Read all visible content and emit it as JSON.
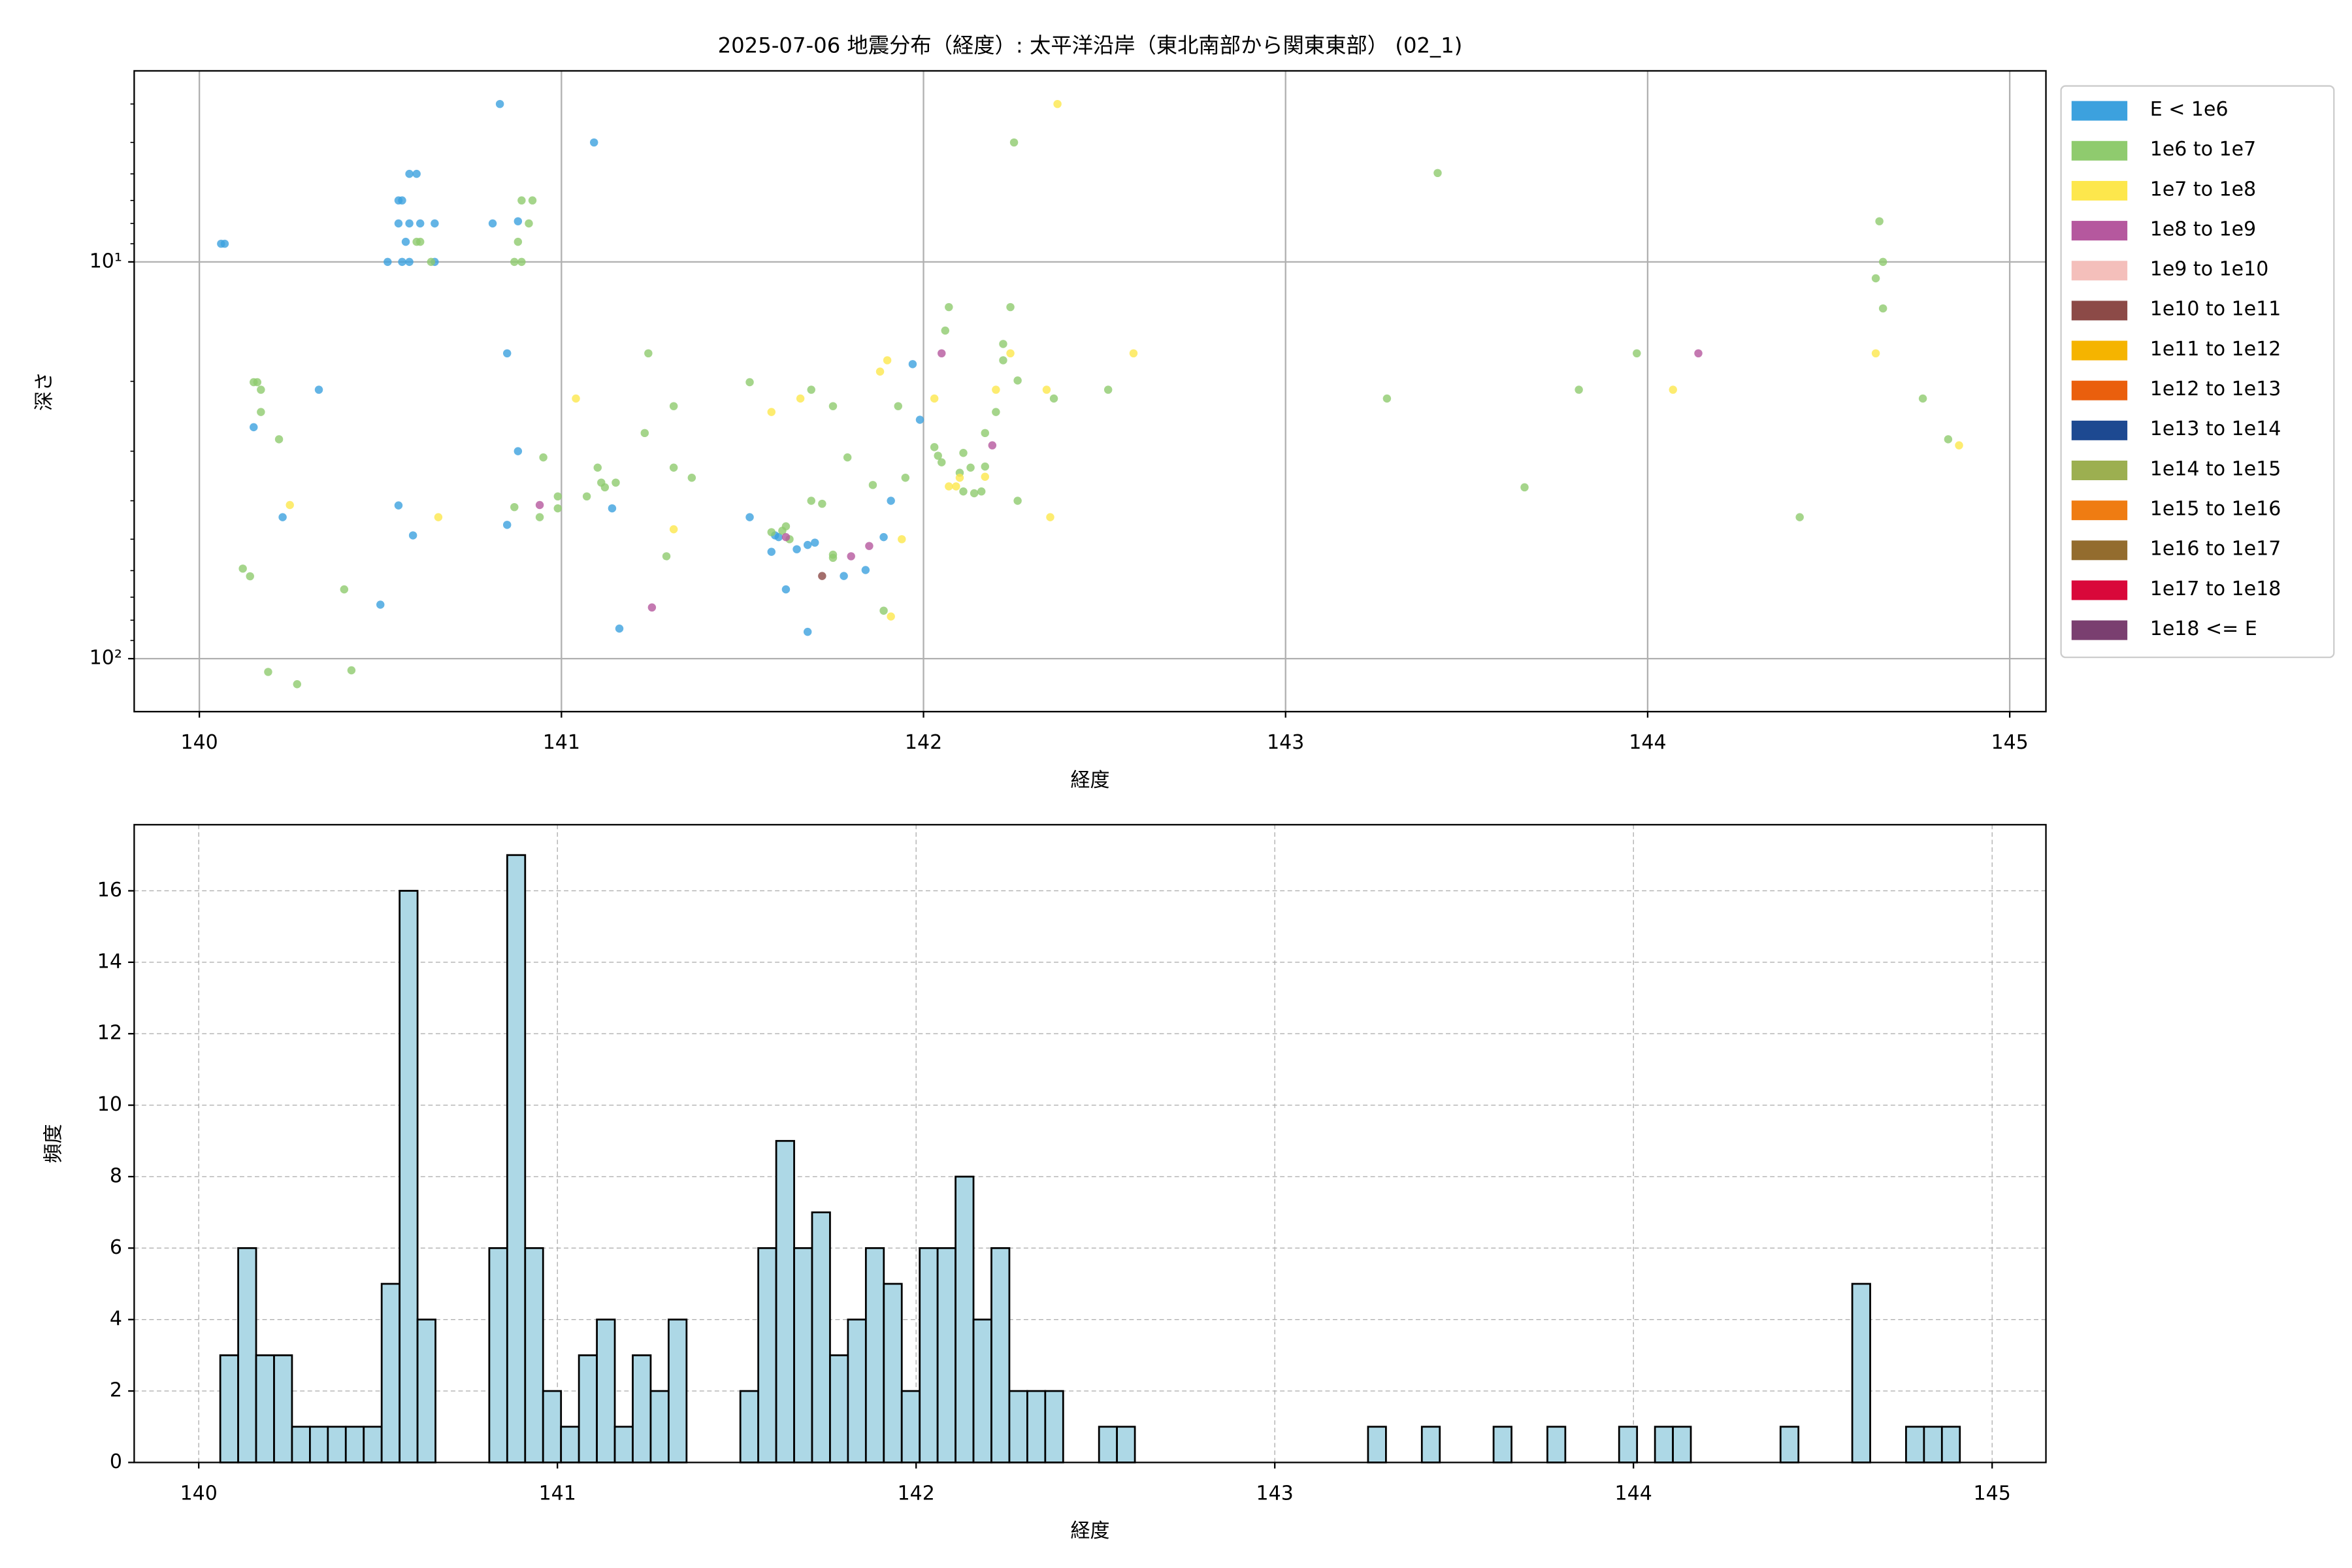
{
  "chart_data": [
    {
      "type": "scatter",
      "title": "2025-07-06 地震分布（経度）: 太平洋沿岸（東北南部から関東東部） (02_1)",
      "xlabel": "経度",
      "ylabel": "深さ",
      "xlim": [
        139.82,
        145.1
      ],
      "ylim": [
        3.3,
        136
      ],
      "yscale": "log",
      "y_inverted": true,
      "xticks": [
        140,
        141,
        142,
        143,
        144,
        145
      ],
      "yticks": [
        {
          "value": 10,
          "label": "10¹"
        },
        {
          "value": 100,
          "label": "10²"
        }
      ],
      "yminorticks": [
        4,
        5,
        6,
        7,
        8,
        9,
        20,
        30,
        40,
        50,
        60,
        70,
        80,
        90
      ],
      "grid": true,
      "legend": "outside upper right",
      "series": [
        {
          "name": "E < 1e6",
          "color": "#3ca1de",
          "x": [
            140.06,
            140.07,
            140.15,
            140.23,
            140.33,
            140.5,
            140.52,
            140.55,
            140.55,
            140.56,
            140.58,
            140.6,
            140.55,
            140.58,
            140.61,
            140.56,
            140.58,
            140.57,
            140.65,
            140.65,
            140.59,
            140.81,
            140.83,
            140.85,
            140.85,
            140.88,
            140.88,
            141.09,
            141.14,
            141.16,
            141.52,
            141.58,
            141.59,
            141.6,
            141.62,
            141.65,
            141.68,
            141.68,
            141.7,
            141.78,
            141.84,
            141.89,
            141.91,
            141.97,
            141.99
          ],
          "y": [
            9.0,
            9.0,
            26.1,
            44,
            21,
            73.1,
            10,
            41.1,
            7.0,
            7.0,
            6.0,
            6.0,
            8.0,
            8.0,
            8.0,
            10,
            10,
            8.9,
            8.0,
            10,
            48.9,
            8.0,
            4.0,
            17,
            46,
            30,
            7.9,
            5.0,
            41.8,
            84,
            44,
            53.8,
            48.9,
            49.4,
            66.9,
            53,
            51.7,
            85.6,
            51,
            61.9,
            59.8,
            49.4,
            40,
            18.1,
            25
          ]
        },
        {
          "name": "1e6 to 1e7",
          "color": "#8fcb6e",
          "x": [
            140.12,
            140.14,
            140.15,
            140.16,
            140.17,
            140.17,
            140.22,
            140.19,
            140.27,
            140.4,
            140.42,
            140.6,
            140.61,
            140.64,
            140.87,
            140.87,
            140.88,
            140.89,
            140.89,
            140.91,
            140.92,
            140.94,
            140.95,
            140.99,
            140.99,
            141.07,
            141.1,
            141.11,
            141.12,
            141.15,
            141.23,
            141.24,
            141.29,
            141.31,
            141.31,
            141.36,
            141.52,
            141.58,
            141.61,
            141.62,
            141.63,
            141.69,
            141.69,
            141.72,
            141.75,
            141.75,
            141.75,
            141.79,
            141.86,
            141.89,
            141.93,
            141.95,
            142.03,
            142.04,
            142.05,
            142.06,
            142.07,
            142.1,
            142.11,
            142.13,
            142.11,
            142.14,
            142.16,
            142.17,
            142.17,
            142.2,
            142.22,
            142.22,
            142.24,
            142.25,
            142.26,
            142.26,
            142.36,
            142.51,
            143.28,
            143.42,
            143.66,
            143.81,
            143.97,
            144.42,
            144.64,
            144.63,
            144.65,
            144.65,
            144.76,
            144.83
          ],
          "y": [
            59.3,
            62,
            20.1,
            20.1,
            21,
            23.9,
            28,
            108,
            116,
            66.9,
            107,
            8.9,
            8.9,
            10,
            41.5,
            10,
            8.9,
            10,
            7.0,
            8.0,
            7.0,
            44,
            31.1,
            41.8,
            39,
            39,
            33,
            36,
            37,
            36,
            27,
            17,
            55.2,
            23.1,
            33,
            35,
            20.1,
            48,
            47.6,
            46.4,
            50,
            21,
            40,
            40.7,
            54.7,
            55.7,
            23.1,
            31.1,
            36.5,
            75.7,
            23.1,
            35,
            29.3,
            30.8,
            32,
            14.9,
            13,
            34,
            30.3,
            33,
            37.9,
            38.3,
            37.9,
            32.8,
            27,
            23.9,
            17.7,
            16.1,
            13,
            5.0,
            19.9,
            40,
            22.1,
            21,
            22.1,
            5.97,
            37,
            21,
            17,
            44,
            7.9,
            11,
            10,
            13.1,
            22.1,
            28
          ]
        },
        {
          "name": "1e7 to 1e8",
          "color": "#fde74c",
          "x": [
            140.25,
            140.66,
            141.04,
            141.31,
            141.58,
            141.66,
            141.88,
            141.9,
            141.91,
            141.94,
            142.03,
            142.07,
            142.09,
            142.1,
            142.17,
            142.2,
            142.24,
            142.34,
            142.35,
            142.37,
            142.58,
            144.07,
            144.63,
            144.86
          ],
          "y": [
            41,
            44,
            22.1,
            47.2,
            23.9,
            22.1,
            18.9,
            17.7,
            78.3,
            50,
            22.1,
            36.8,
            36.8,
            35,
            34.8,
            21,
            17,
            21,
            44,
            4.0,
            17,
            21,
            17,
            29
          ]
        },
        {
          "name": "1e8 to 1e9",
          "color": "#b5589e",
          "x": [
            140.94,
            141.25,
            141.62,
            141.8,
            141.85,
            142.05,
            142.19,
            144.14
          ],
          "y": [
            41,
            74.3,
            49.4,
            55.2,
            52,
            17,
            29,
            17
          ]
        },
        {
          "name": "1e9 to 1e10",
          "color": "#f4bfbb",
          "x": [],
          "y": []
        },
        {
          "name": "1e10 to 1e11",
          "color": "#8c4a47",
          "x": [
            141.72
          ],
          "y": [
            61.9
          ]
        },
        {
          "name": "1e11 to 1e12",
          "color": "#f5b400",
          "x": [],
          "y": []
        },
        {
          "name": "1e12 to 1e13",
          "color": "#ea5f0d",
          "x": [],
          "y": []
        },
        {
          "name": "1e13 to 1e14",
          "color": "#1d4991",
          "x": [],
          "y": []
        },
        {
          "name": "1e14 to 1e15",
          "color": "#9caf50",
          "x": [],
          "y": []
        },
        {
          "name": "1e15 to 1e16",
          "color": "#ef7c12",
          "x": [],
          "y": []
        },
        {
          "name": "1e16 to 1e17",
          "color": "#936c2e",
          "x": [],
          "y": []
        },
        {
          "name": "1e17 to 1e18",
          "color": "#d9083a",
          "x": [],
          "y": []
        },
        {
          "name": "1e18 <= E",
          "color": "#7a3f70",
          "x": [],
          "y": []
        }
      ]
    },
    {
      "type": "histogram",
      "xlabel": "経度",
      "ylabel": "頻度",
      "xlim": [
        139.82,
        145.15
      ],
      "ylim": [
        0,
        17.85
      ],
      "xticks": [
        140,
        141,
        142,
        143,
        144,
        145
      ],
      "yticks": [
        0,
        2,
        4,
        6,
        8,
        10,
        12,
        14,
        16
      ],
      "grid": true,
      "grid_style": "dashed",
      "color": "#add8e6",
      "edgecolor": "#000000",
      "bins": [
        140.06,
        140.11,
        140.16,
        140.21,
        140.26,
        140.31,
        140.36,
        140.41,
        140.46,
        140.51,
        140.56,
        140.61,
        140.66,
        140.71,
        140.76,
        140.81,
        140.86,
        140.91,
        140.96,
        141.01,
        141.06,
        141.11,
        141.16,
        141.21,
        141.26,
        141.31,
        141.36,
        141.41,
        141.46,
        141.51,
        141.56,
        141.61,
        141.66,
        141.71,
        141.76,
        141.81,
        141.86,
        141.91,
        141.96,
        142.01,
        142.06,
        142.11,
        142.16,
        142.21,
        142.26,
        142.31,
        142.36,
        142.41,
        142.46,
        142.51,
        142.56,
        142.61,
        142.66,
        142.71,
        142.76,
        142.81,
        142.86,
        142.91,
        142.96,
        143.01,
        143.06,
        143.11,
        143.16,
        143.21,
        143.26,
        143.31,
        143.36,
        143.41,
        143.46,
        143.51,
        143.56,
        143.61,
        143.66,
        143.71,
        143.76,
        143.81,
        143.86,
        143.91,
        143.96,
        144.01,
        144.06,
        144.11,
        144.16,
        144.21,
        144.26,
        144.31,
        144.36,
        144.41,
        144.46,
        144.51,
        144.56,
        144.61,
        144.66,
        144.71,
        144.76,
        144.81,
        144.86,
        144.91
      ],
      "values": [
        3,
        6,
        3,
        3,
        1,
        1,
        1,
        1,
        1,
        5,
        16,
        4,
        0,
        0,
        0,
        6,
        17,
        6,
        2,
        1,
        3,
        4,
        1,
        3,
        2,
        4,
        0,
        0,
        0,
        2,
        6,
        9,
        6,
        7,
        3,
        4,
        6,
        5,
        2,
        6,
        6,
        8,
        4,
        6,
        2,
        2,
        2,
        0,
        0,
        1,
        1,
        0,
        0,
        0,
        0,
        0,
        0,
        0,
        0,
        0,
        0,
        0,
        0,
        0,
        1,
        0,
        0,
        1,
        0,
        0,
        0,
        1,
        0,
        0,
        1,
        0,
        0,
        0,
        1,
        0,
        1,
        1,
        0,
        0,
        0,
        0,
        0,
        1,
        0,
        0,
        0,
        5,
        0,
        0,
        1,
        1,
        1
      ]
    }
  ]
}
